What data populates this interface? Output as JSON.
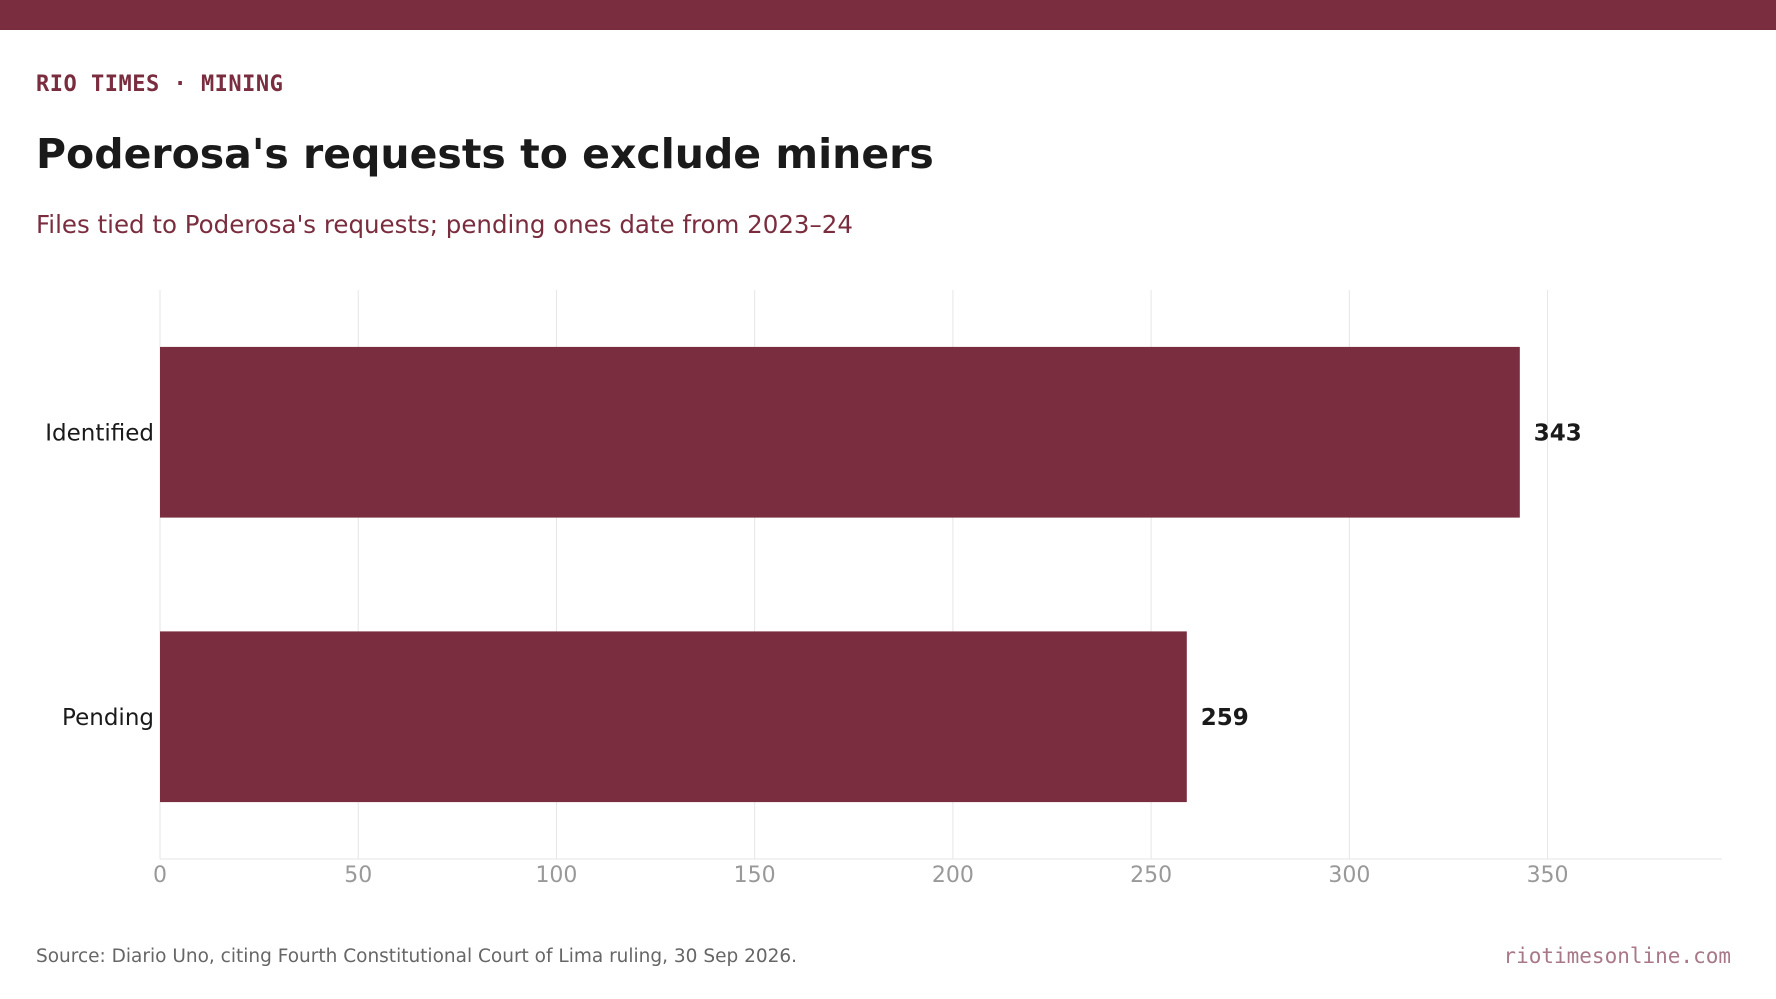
{
  "header": {
    "kicker": "RIO TIMES · MINING",
    "title": "Poderosa's requests to exclude miners",
    "subtitle": "Files tied to Poderosa's requests; pending ones date from 2023–24"
  },
  "footer": {
    "source": "Source: Diario Uno, citing Fourth Constitutional Court of Lima ruling, 30 Sep 2026.",
    "brand": "riotimesonline.com"
  },
  "colors": {
    "accent": "#7a2d3e",
    "brand_muted": "#a87888",
    "grid": "#e6e6e6",
    "tick": "#999999",
    "text_dark": "#1a1a1a"
  },
  "chart_data": {
    "type": "bar",
    "orientation": "horizontal",
    "title": "Poderosa's requests to exclude miners",
    "subtitle": "Files tied to Poderosa's requests; pending ones date from 2023–24",
    "xlabel": "",
    "ylabel": "",
    "categories": [
      "Identified",
      "Pending"
    ],
    "values": [
      343,
      259
    ],
    "data_labels": [
      "343",
      "259"
    ],
    "xlim": [
      0,
      394
    ],
    "xticks": [
      0,
      50,
      100,
      150,
      200,
      250,
      300,
      350
    ],
    "xtick_labels": [
      "0",
      "50",
      "100",
      "150",
      "200",
      "250",
      "300",
      "350"
    ],
    "grid": true,
    "legend": "none"
  }
}
